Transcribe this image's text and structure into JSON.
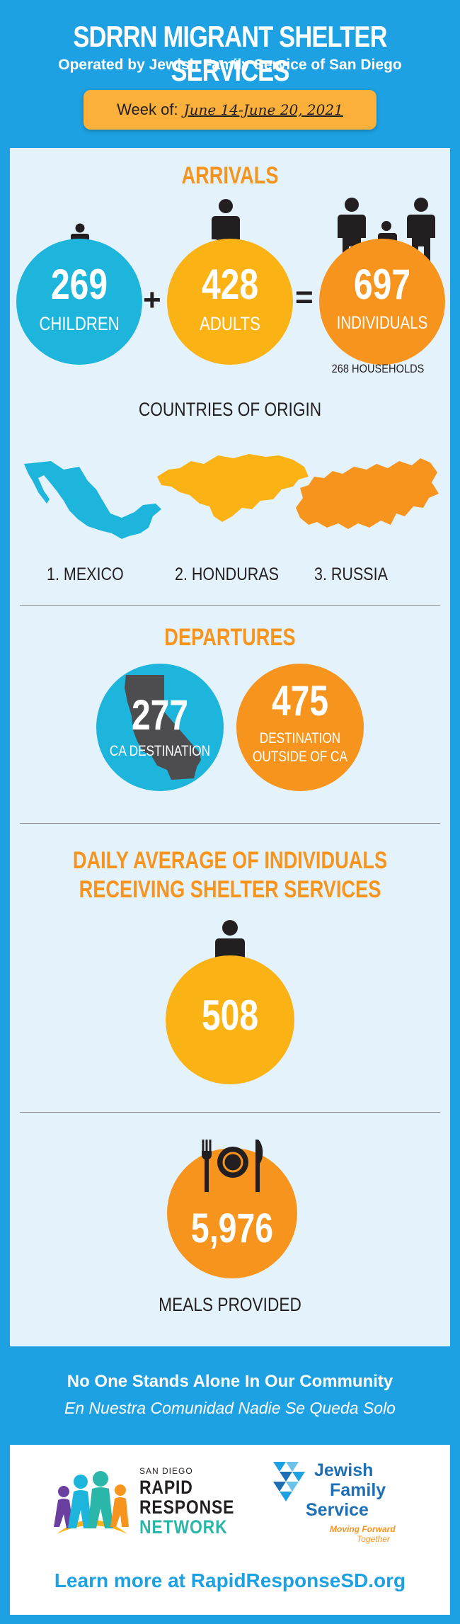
{
  "header": {
    "title": "SDRRN MIGRANT SHELTER SERVICES",
    "subtitle": "Operated by Jewish Family Service of San Diego",
    "week_label": "Week of:",
    "week_dates": "June 14-June 20, 2021"
  },
  "arrivals": {
    "title": "ARRIVALS",
    "children": {
      "value": "269",
      "label": "CHILDREN"
    },
    "adults": {
      "value": "428",
      "label": "ADULTS"
    },
    "individuals": {
      "value": "697",
      "label": "INDIVIDUALS"
    },
    "plus": "+",
    "equals": "=",
    "households": "268 HOUSEHOLDS"
  },
  "origin": {
    "title": "COUNTRIES OF ORIGIN",
    "countries": [
      "1. MEXICO",
      "2. HONDURAS",
      "3. RUSSIA"
    ]
  },
  "departures": {
    "title": "DEPARTURES",
    "ca": {
      "value": "277",
      "label": "CA DESTINATION"
    },
    "outside": {
      "value": "475",
      "label_line1": "DESTINATION",
      "label_line2": "OUTSIDE OF CA"
    }
  },
  "daily": {
    "title_line1": "DAILY AVERAGE OF INDIVIDUALS",
    "title_line2": "RECEIVING SHELTER SERVICES",
    "value": "508"
  },
  "meals": {
    "value": "5,976",
    "label": "MEALS PROVIDED"
  },
  "footer": {
    "tagline_en": "No One Stands Alone In Our Community",
    "tagline_es": "En Nuestra Comunidad Nadie Se Queda Solo",
    "rrn_small": "SAN DIEGO",
    "rrn_line1": "RAPID",
    "rrn_line2": "RESPONSE",
    "rrn_line3": "NETWORK",
    "jfs_line1": "Jewish",
    "jfs_line2": "Family",
    "jfs_line3": "Service",
    "jfs_tag1": "Moving Forward",
    "jfs_tag2": "Together",
    "learn_more": "Learn more at RapidResponseSD.org"
  },
  "colors": {
    "background": "#1da1e2",
    "panel": "#e4f3fb",
    "accent_orange": "#f7941d",
    "accent_yellow": "#fbb215",
    "accent_blue": "#1eb5dc",
    "badge": "#fbb03b"
  }
}
